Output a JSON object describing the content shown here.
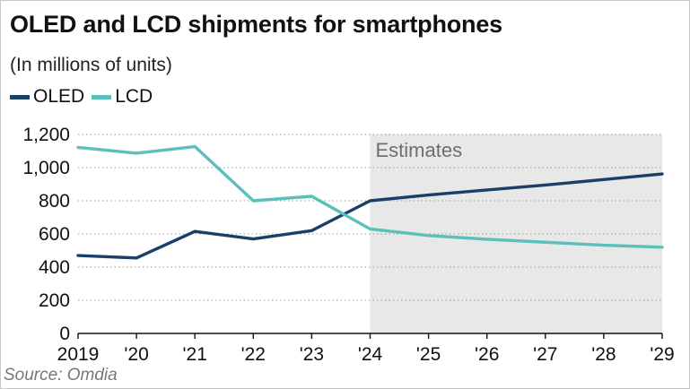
{
  "header": {
    "title": "OLED and LCD shipments for smartphones",
    "subtitle": "(In millions of units)"
  },
  "legend": {
    "items": [
      {
        "label": "OLED",
        "color": "#1b3f6b"
      },
      {
        "label": "LCD",
        "color": "#5bbfbb"
      }
    ]
  },
  "footer": {
    "source": "Source: Omdia"
  },
  "chart_data": {
    "type": "line",
    "title": "OLED and LCD shipments for smartphones",
    "subtitle": "(In millions of units)",
    "xlabel": "",
    "ylabel": "",
    "categories": [
      "2019",
      "'20",
      "'21",
      "'22",
      "'23",
      "'24",
      "'25",
      "'26",
      "'27",
      "'28",
      "'29"
    ],
    "ylim": [
      0,
      1200
    ],
    "yticks": [
      "0",
      "200",
      "400",
      "600",
      "800",
      "1,000",
      "1,200"
    ],
    "ytick_values": [
      0,
      200,
      400,
      600,
      800,
      1000,
      1200
    ],
    "grid": "horizontal-dotted",
    "legend_position": "top-left",
    "shaded_region": {
      "label": "Estimates",
      "from": "'24",
      "to": "'29",
      "color": "#e8e8e8"
    },
    "series": [
      {
        "name": "OLED",
        "color": "#1b3f6b",
        "values": [
          470,
          455,
          615,
          570,
          620,
          800,
          835,
          865,
          895,
          928,
          962
        ]
      },
      {
        "name": "LCD",
        "color": "#5bbfbb",
        "values": [
          1122,
          1087,
          1127,
          800,
          827,
          630,
          590,
          568,
          550,
          532,
          520
        ]
      }
    ]
  }
}
